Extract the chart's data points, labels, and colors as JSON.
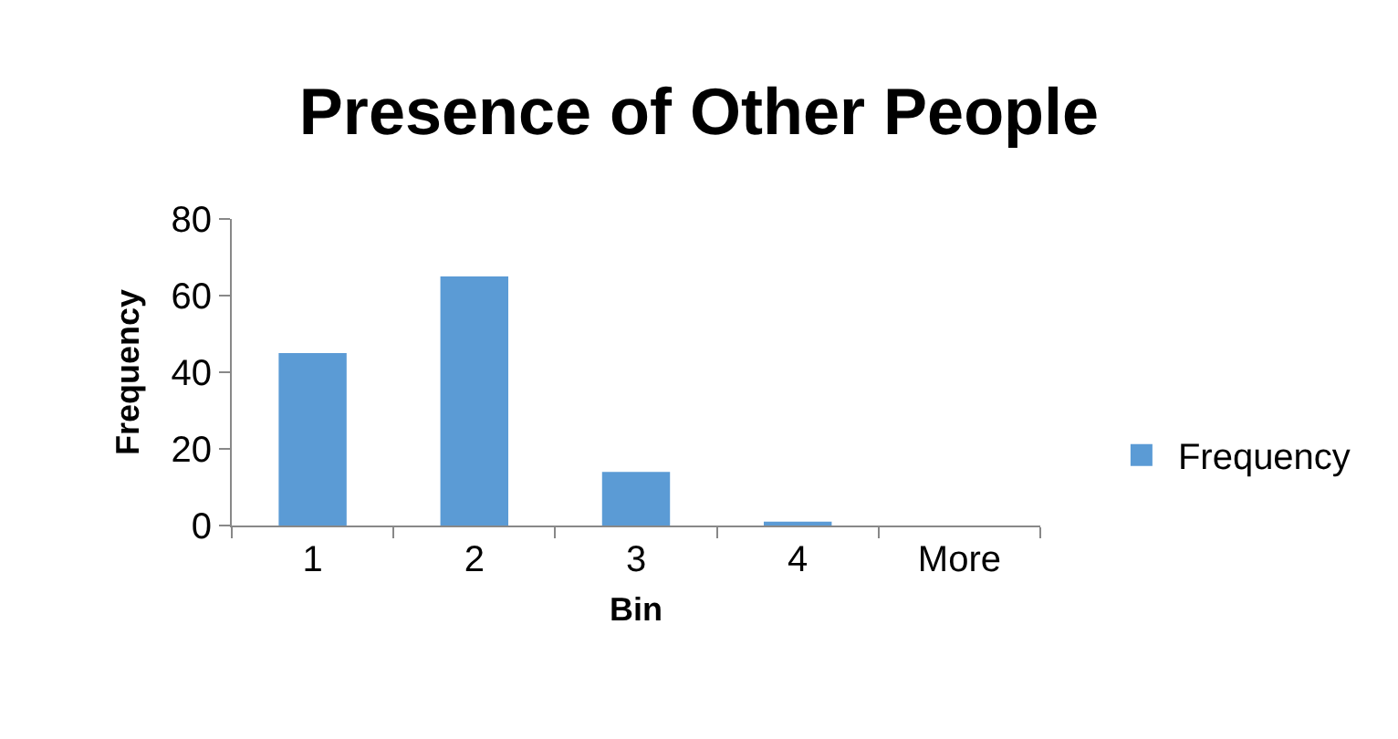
{
  "chart_data": {
    "type": "bar",
    "title": "Presence of Other People",
    "xlabel": "Bin",
    "ylabel": "Frequency",
    "categories": [
      "1",
      "2",
      "3",
      "4",
      "More"
    ],
    "series": [
      {
        "name": "Frequency",
        "color": "#5b9bd5",
        "values": [
          45,
          65,
          14,
          1,
          0
        ]
      }
    ],
    "ylim": [
      0,
      80
    ],
    "yticks": [
      0,
      20,
      40,
      60,
      80
    ],
    "grid": false,
    "legend": "right"
  }
}
